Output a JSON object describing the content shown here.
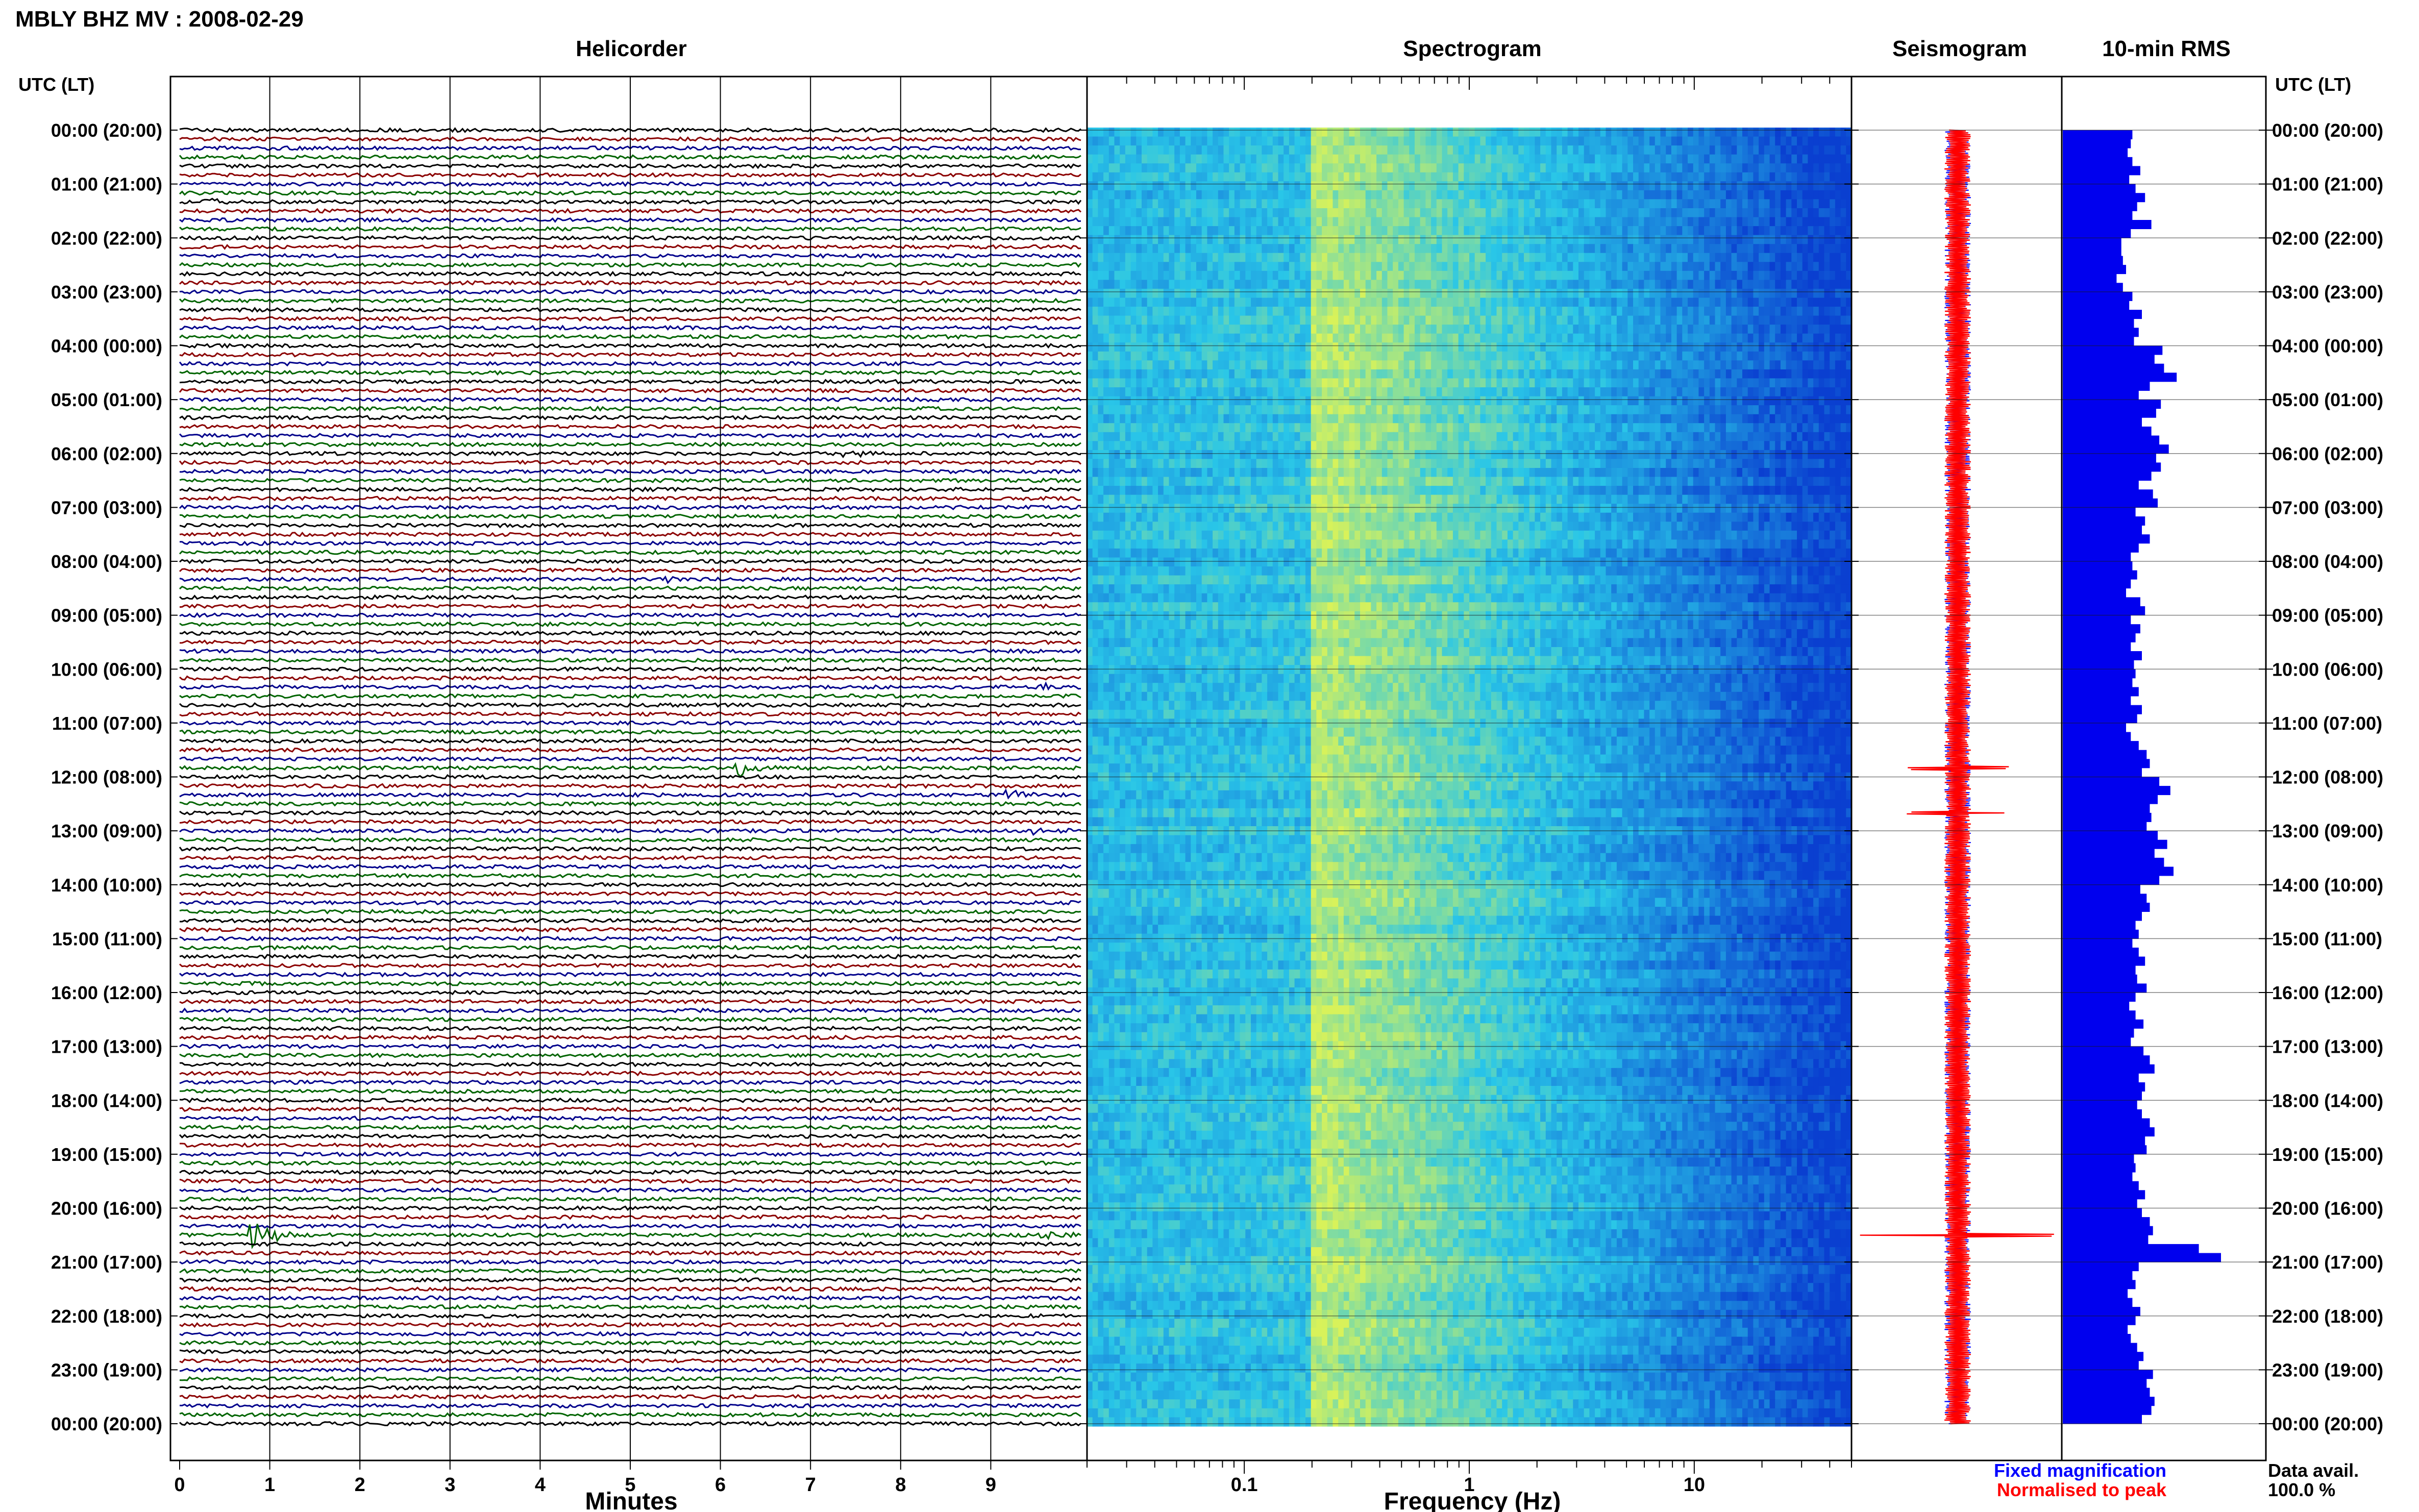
{
  "header": {
    "station_title": "MBLY BHZ MV : 2008-02-29",
    "panel_titles": [
      "Helicorder",
      "Spectrogram",
      "Seismogram",
      "10-min RMS"
    ],
    "time_axis_label": "UTC (LT)"
  },
  "colors": {
    "trace_cycle": [
      "#000000",
      "#8b0000",
      "#00008b",
      "#006400"
    ],
    "spectro_low": "#0a3fd0",
    "spectro_mid": "#29c6e8",
    "spectro_high": "#d8f25a",
    "seis_fixed": "#0000ff",
    "seis_norm": "#ff0000",
    "rms_bar": "#0000ee"
  },
  "chart_data": [
    {
      "type": "line",
      "name": "helicorder",
      "title": "Helicorder",
      "xlabel": "Minutes",
      "ylabel": "UTC (LT)",
      "x_ticks": [
        "0",
        "1",
        "2",
        "3",
        "4",
        "5",
        "6",
        "7",
        "8",
        "9"
      ],
      "xlim": [
        0,
        10
      ],
      "rows_per_hour": 6,
      "row_count": 145,
      "y_tick_labels": [
        "00:00 (20:00)",
        "01:00 (21:00)",
        "02:00 (22:00)",
        "03:00 (23:00)",
        "04:00 (00:00)",
        "05:00 (01:00)",
        "06:00 (02:00)",
        "07:00 (03:00)",
        "08:00 (04:00)",
        "09:00 (05:00)",
        "10:00 (06:00)",
        "11:00 (07:00)",
        "12:00 (08:00)",
        "13:00 (09:00)",
        "14:00 (10:00)",
        "15:00 (11:00)",
        "16:00 (12:00)",
        "17:00 (13:00)",
        "18:00 (14:00)",
        "19:00 (15:00)",
        "20:00 (16:00)",
        "21:00 (17:00)",
        "22:00 (18:00)",
        "23:00 (19:00)",
        "00:00 (20:00)"
      ],
      "events": [
        {
          "time_utc": "01:20",
          "minute": 0.3,
          "relative_amplitude": 1.5
        },
        {
          "time_utc": "06:00",
          "minute": 7.4,
          "relative_amplitude": 1.8
        },
        {
          "time_utc": "08:20",
          "minute": 5.4,
          "relative_amplitude": 1.6
        },
        {
          "time_utc": "08:30",
          "minute": 9.5,
          "relative_amplitude": 1.4
        },
        {
          "time_utc": "10:20",
          "minute": 9.6,
          "relative_amplitude": 1.4
        },
        {
          "time_utc": "11:50",
          "minute": 6.2,
          "relative_amplitude": 3.5
        },
        {
          "time_utc": "12:20",
          "minute": 9.2,
          "relative_amplitude": 1.6
        },
        {
          "time_utc": "13:00",
          "minute": 9.5,
          "relative_amplitude": 1.4
        },
        {
          "time_utc": "20:30",
          "minute": 0.8,
          "relative_amplitude": 6.0
        },
        {
          "time_utc": "20:30",
          "minute": 9.6,
          "relative_amplitude": 1.8
        }
      ]
    },
    {
      "type": "heatmap",
      "name": "spectrogram",
      "title": "Spectrogram",
      "xlabel": "Frequency (Hz)",
      "x_scale": "log",
      "xlim": [
        0.02,
        50
      ],
      "x_ticks": [
        "0.1",
        "1",
        "10"
      ],
      "row_count": 145,
      "peak_band_hz": [
        0.2,
        0.6
      ],
      "highest_energy_hz": 0.22
    },
    {
      "type": "line",
      "name": "seismogram",
      "title": "Seismogram",
      "series": [
        {
          "name": "Fixed magnification",
          "color": "#0000ff"
        },
        {
          "name": "Normalised to peak",
          "color": "#ff0000"
        }
      ],
      "spikes_utc": [
        "11:50",
        "12:40",
        "20:30"
      ]
    },
    {
      "type": "bar",
      "name": "rms",
      "title": "10-min RMS",
      "orientation": "horizontal",
      "hour_labels": [
        "00:00",
        "01:00",
        "02:00",
        "03:00",
        "04:00",
        "05:00",
        "06:00",
        "07:00",
        "08:00",
        "09:00",
        "10:00",
        "11:00",
        "12:00",
        "13:00",
        "14:00",
        "15:00",
        "16:00",
        "17:00",
        "18:00",
        "19:00",
        "20:00",
        "21:00",
        "22:00",
        "23:00"
      ],
      "values": [
        0.44,
        0.43,
        0.41,
        0.44,
        0.49,
        0.42,
        0.46,
        0.52,
        0.47,
        0.44,
        0.56,
        0.43,
        0.37,
        0.37,
        0.38,
        0.4,
        0.34,
        0.38,
        0.44,
        0.42,
        0.5,
        0.45,
        0.48,
        0.45,
        0.63,
        0.58,
        0.64,
        0.72,
        0.55,
        0.48,
        0.62,
        0.59,
        0.5,
        0.56,
        0.61,
        0.67,
        0.59,
        0.62,
        0.56,
        0.48,
        0.57,
        0.6,
        0.46,
        0.52,
        0.5,
        0.55,
        0.48,
        0.43,
        0.44,
        0.47,
        0.43,
        0.4,
        0.49,
        0.52,
        0.43,
        0.49,
        0.46,
        0.43,
        0.5,
        0.45,
        0.46,
        0.44,
        0.48,
        0.43,
        0.5,
        0.47,
        0.4,
        0.43,
        0.48,
        0.53,
        0.55,
        0.5,
        0.61,
        0.68,
        0.6,
        0.55,
        0.56,
        0.53,
        0.6,
        0.66,
        0.58,
        0.64,
        0.7,
        0.61,
        0.49,
        0.53,
        0.55,
        0.5,
        0.46,
        0.48,
        0.44,
        0.48,
        0.52,
        0.46,
        0.47,
        0.53,
        0.46,
        0.42,
        0.46,
        0.51,
        0.45,
        0.43,
        0.51,
        0.55,
        0.58,
        0.48,
        0.52,
        0.5,
        0.47,
        0.5,
        0.55,
        0.58,
        0.52,
        0.53,
        0.45,
        0.46,
        0.44,
        0.48,
        0.52,
        0.47,
        0.5,
        0.55,
        0.57,
        0.54,
        0.86,
        1.0,
        0.48,
        0.44,
        0.46,
        0.41,
        0.44,
        0.49,
        0.46,
        0.41,
        0.43,
        0.47,
        0.51,
        0.48,
        0.57,
        0.53,
        0.55,
        0.58,
        0.56,
        0.5
      ]
    }
  ],
  "legend": {
    "fixed_label": "Fixed magnification",
    "normalised_label": "Normalised to peak"
  },
  "footer": {
    "data_avail_label": "Data avail.",
    "data_avail_value": "100.0 %"
  }
}
